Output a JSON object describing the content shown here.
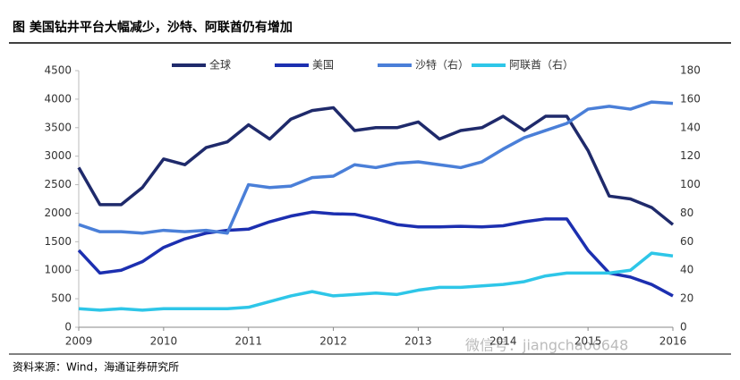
{
  "chart_data": {
    "type": "line",
    "title": "图  美国钻井平台大幅减少，沙特、阿联酋仍有增加",
    "source": "资料来源：Wind，海通证券研究所",
    "watermark": "微信号：jiangchao6648",
    "x": [
      2009,
      2009.25,
      2009.5,
      2009.75,
      2010,
      2010.25,
      2010.5,
      2010.75,
      2011,
      2011.25,
      2011.5,
      2011.75,
      2012,
      2012.25,
      2012.5,
      2012.75,
      2013,
      2013.25,
      2013.5,
      2013.75,
      2014,
      2014.25,
      2014.5,
      2014.75,
      2015,
      2015.25,
      2015.5,
      2015.75,
      2016
    ],
    "xlim": [
      2009,
      2016
    ],
    "xticks": [
      2009,
      2010,
      2011,
      2012,
      2013,
      2014,
      2015,
      2016
    ],
    "ylim": [
      0,
      4500
    ],
    "yticks": [
      0,
      500,
      1000,
      1500,
      2000,
      2500,
      3000,
      3500,
      4000,
      4500
    ],
    "y2lim": [
      0,
      180
    ],
    "y2ticks": [
      0,
      20,
      40,
      60,
      80,
      100,
      120,
      140,
      160,
      180
    ],
    "legend": "top",
    "series": [
      {
        "name": "全球",
        "color": "#1f2a6b",
        "values": [
          2800,
          2150,
          2150,
          2450,
          2950,
          2850,
          3150,
          3250,
          3550,
          3300,
          3650,
          3800,
          3850,
          3450,
          3500,
          3500,
          3600,
          3300,
          3450,
          3500,
          3700,
          3450,
          3700,
          3700,
          3100,
          2300,
          2250,
          2100,
          1800
        ]
      },
      {
        "name": "美国",
        "color": "#1c2fb0",
        "values": [
          1350,
          950,
          1000,
          1150,
          1400,
          1550,
          1650,
          1700,
          1720,
          1850,
          1950,
          2020,
          1990,
          1980,
          1900,
          1800,
          1760,
          1760,
          1770,
          1760,
          1780,
          1850,
          1900,
          1900,
          1350,
          950,
          880,
          750,
          550
        ]
      },
      {
        "name": "沙特（右）",
        "color": "#4a7fd8",
        "axis": "y2",
        "values": [
          72,
          67,
          67,
          66,
          68,
          67,
          68,
          66,
          100,
          98,
          99,
          105,
          106,
          114,
          112,
          115,
          116,
          114,
          112,
          116,
          125,
          133,
          138,
          143,
          153,
          155,
          153,
          158,
          157
        ]
      },
      {
        "name": "阿联酋（右）",
        "color": "#2ec6e8",
        "axis": "y2",
        "values": [
          13,
          12,
          13,
          12,
          13,
          13,
          13,
          13,
          14,
          18,
          22,
          25,
          22,
          23,
          24,
          23,
          26,
          28,
          28,
          29,
          30,
          32,
          36,
          38,
          38,
          38,
          40,
          52,
          50
        ]
      }
    ]
  }
}
